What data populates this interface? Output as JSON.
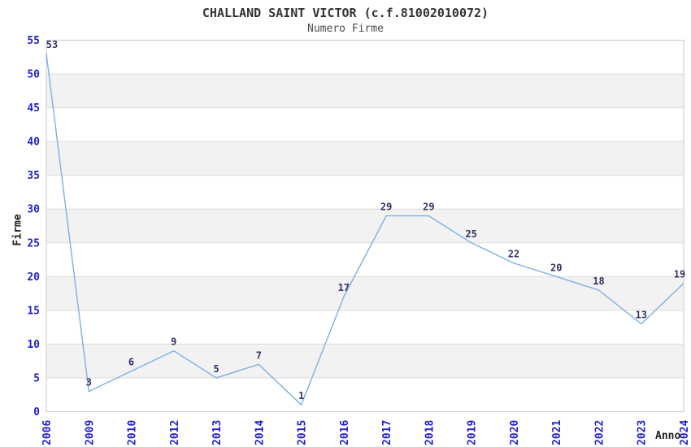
{
  "chart_data": {
    "type": "line",
    "title": "CHALLAND SAINT VICTOR (c.f.81002010072)",
    "subtitle": "Numero Firme",
    "xlabel": "Anno",
    "ylabel": "Firme",
    "categories": [
      "2006",
      "2009",
      "2010",
      "2012",
      "2013",
      "2014",
      "2015",
      "2016",
      "2017",
      "2018",
      "2019",
      "2020",
      "2021",
      "2022",
      "2023",
      "2024"
    ],
    "values": [
      53,
      3,
      6,
      9,
      5,
      7,
      1,
      17,
      29,
      29,
      25,
      22,
      20,
      18,
      13,
      19
    ],
    "point_labels": [
      "53",
      "3",
      "6",
      "9",
      "5",
      "7",
      "1",
      "17",
      "29",
      "29",
      "25",
      "22",
      "20",
      "18",
      "13",
      "19"
    ],
    "ylim": [
      0,
      55
    ],
    "ytick_step": 5,
    "yticks": [
      0,
      5,
      10,
      15,
      20,
      25,
      30,
      35,
      40,
      45,
      50,
      55
    ],
    "grid": "horizontal gridlines with alternating gray bands every 5 units",
    "legend": "none",
    "colors": {
      "line": "#7cb0e6",
      "tick_label": "#2222cc",
      "point_label": "#333366",
      "band_fill": "#f2f2f2",
      "gridline": "#dcdcdc",
      "frame": "#d0d0d0",
      "title": "#333333",
      "subtitle": "#4d4d4d",
      "axis_title": "#222222",
      "background": "#ffffff"
    }
  }
}
